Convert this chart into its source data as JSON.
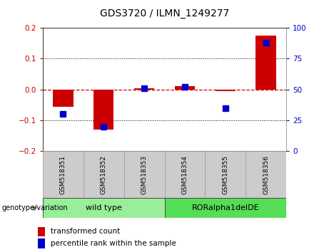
{
  "title": "GDS3720 / ILMN_1249277",
  "samples": [
    "GSM518351",
    "GSM518352",
    "GSM518353",
    "GSM518354",
    "GSM518355",
    "GSM518356"
  ],
  "red_values": [
    -0.055,
    -0.13,
    0.005,
    0.01,
    -0.005,
    0.175
  ],
  "blue_values_raw": [
    30,
    20,
    51,
    52,
    35,
    88
  ],
  "ylim_left": [
    -0.2,
    0.2
  ],
  "ylim_right": [
    0,
    100
  ],
  "yticks_left": [
    -0.2,
    -0.1,
    0.0,
    0.1,
    0.2
  ],
  "yticks_right": [
    0,
    25,
    50,
    75,
    100
  ],
  "left_color": "#cc0000",
  "right_color": "#0000cc",
  "hline_color": "#cc0000",
  "bg_color": "#ffffff",
  "genotype_groups": [
    {
      "label": "wild type",
      "samples": [
        0,
        1,
        2
      ],
      "color": "#99ee99"
    },
    {
      "label": "RORalpha1delDE",
      "samples": [
        3,
        4,
        5
      ],
      "color": "#55dd55"
    }
  ],
  "legend_red_label": "transformed count",
  "legend_blue_label": "percentile rank within the sample",
  "genotype_label": "genotype/variation",
  "bar_width": 0.5,
  "blue_marker_size": 6
}
